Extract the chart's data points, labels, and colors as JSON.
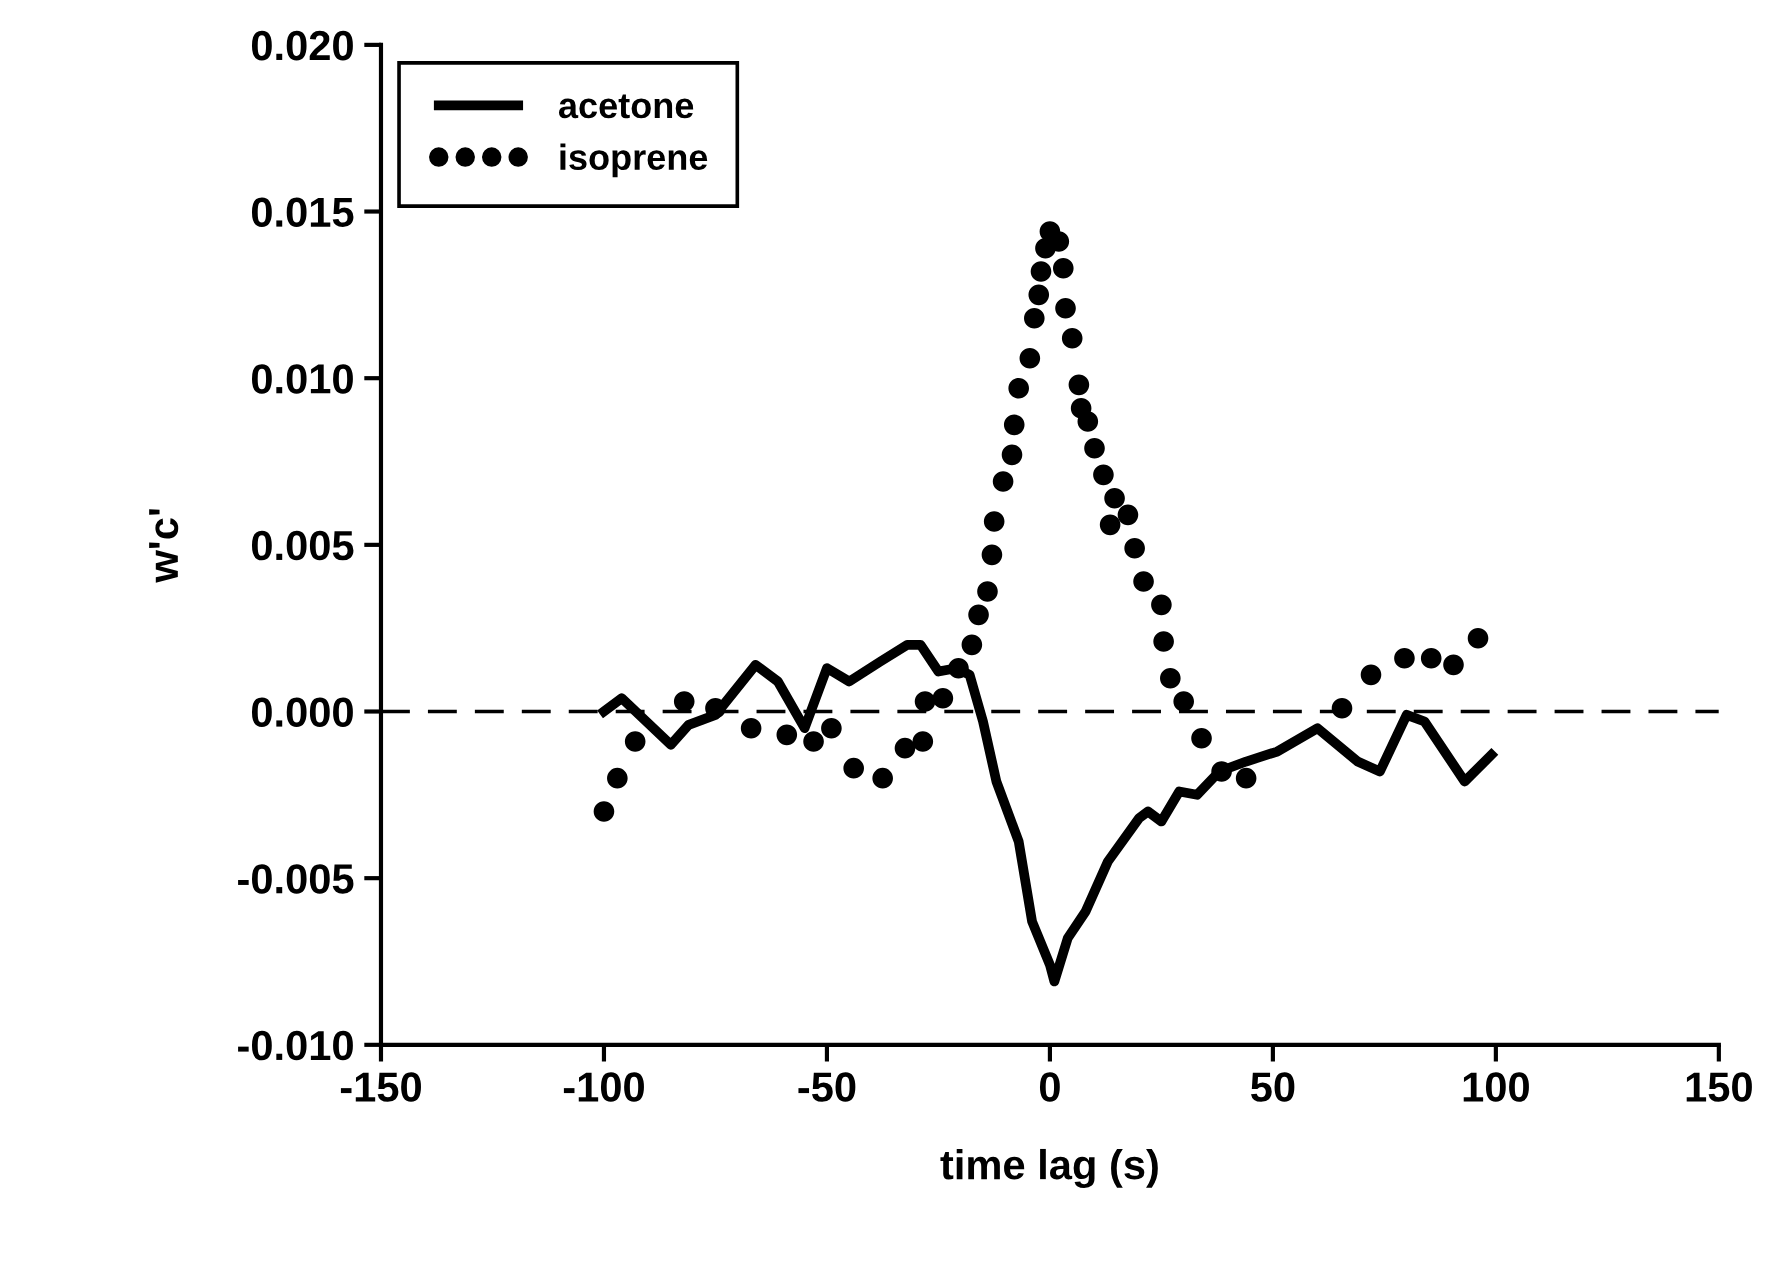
{
  "chart_data": {
    "type": "line",
    "xlabel": "time lag (s)",
    "ylabel": "w'c'",
    "xlim": [
      -150,
      150
    ],
    "xticks": [
      -150,
      -100,
      -50,
      0,
      50,
      100,
      150
    ],
    "ylim": [
      -0.01,
      0.02
    ],
    "yticks": [
      {
        "value": -0.01,
        "label": "-0.010"
      },
      {
        "value": -0.005,
        "label": "-0.005"
      },
      {
        "value": 0,
        "label": "0.000"
      },
      {
        "value": 0.005,
        "label": "0.005"
      },
      {
        "value": 0.01,
        "label": "0.010"
      },
      {
        "value": 0.015,
        "label": "0.015"
      },
      {
        "value": 0.02,
        "label": "0.020"
      }
    ],
    "grid": false,
    "legend": "top left",
    "ref_lines": [
      {
        "axis": "y",
        "value": 0,
        "label": null,
        "color": "#000000",
        "line_style": "dashed"
      }
    ],
    "series": [
      {
        "name": "acetone",
        "color": "#000000",
        "line_style": "solid",
        "marker": "none",
        "x": [
          -100,
          -96,
          -85,
          -81,
          -75,
          -66,
          -61,
          -55,
          -50,
          -45,
          -38,
          -32,
          -29,
          -25,
          -21,
          -18,
          -15,
          -12,
          -7,
          -4,
          0,
          1,
          4,
          8,
          13,
          20,
          22,
          25,
          29,
          33,
          38,
          44,
          51,
          60,
          69,
          74,
          80,
          84,
          93,
          99
        ],
        "values": [
          0,
          0.0004,
          -0.001,
          -0.0004,
          -0.0001,
          0.0014,
          0.0009,
          -0.0005,
          0.0013,
          0.0009,
          0.0015,
          0.002,
          0.002,
          0.0012,
          0.0013,
          0.0011,
          -0.0003,
          -0.0021,
          -0.0039,
          -0.0063,
          -0.0076,
          -0.0081,
          -0.0068,
          -0.006,
          -0.0045,
          -0.0032,
          -0.003,
          -0.0033,
          -0.0024,
          -0.0025,
          -0.0018,
          -0.0015,
          -0.0012,
          -0.0005,
          -0.0015,
          -0.0018,
          -0.0001,
          -0.0003,
          -0.0021,
          -0.0013
        ]
      },
      {
        "name": "isoprene",
        "type": "scatter",
        "color": "#000000",
        "marker": "circle",
        "x": [
          -100,
          -97,
          -93,
          -82,
          -75,
          -67,
          -59,
          -53,
          -49,
          -44,
          -37.5,
          -32.5,
          -28.5,
          -28,
          -24,
          -20.5,
          -17.5,
          -16,
          -14,
          -13,
          -12.5,
          -10.5,
          -8.5,
          -8,
          -7,
          -4.5,
          -3.5,
          -2.5,
          -2,
          -1,
          0,
          2,
          3,
          3.5,
          5,
          6.5,
          7,
          8.5,
          10,
          12,
          14.5,
          13.5,
          17.5,
          19,
          21,
          25,
          25.5,
          27,
          30,
          34,
          38.5,
          44,
          65.5,
          72,
          79.5,
          85.5,
          90.5,
          96
        ],
        "values": [
          -0.003,
          -0.002,
          -0.0009,
          0.0003,
          0.0001,
          -0.0005,
          -0.0007,
          -0.0009,
          -0.0005,
          -0.0017,
          -0.002,
          -0.0011,
          -0.0009,
          0.0003,
          0.0004,
          0.0013,
          0.002,
          0.0029,
          0.0036,
          0.0047,
          0.0057,
          0.0069,
          0.0077,
          0.0086,
          0.0097,
          0.0106,
          0.0118,
          0.0125,
          0.0132,
          0.0139,
          0.0144,
          0.0141,
          0.0133,
          0.0121,
          0.0112,
          0.0098,
          0.0091,
          0.0087,
          0.0079,
          0.0071,
          0.0064,
          0.0056,
          0.0059,
          0.0049,
          0.0039,
          0.0032,
          0.0021,
          0.001,
          0.0003,
          -0.0008,
          -0.0018,
          -0.002,
          0.0001,
          0.0011,
          0.0016,
          0.0016,
          0.0014,
          0.0022
        ]
      }
    ]
  }
}
